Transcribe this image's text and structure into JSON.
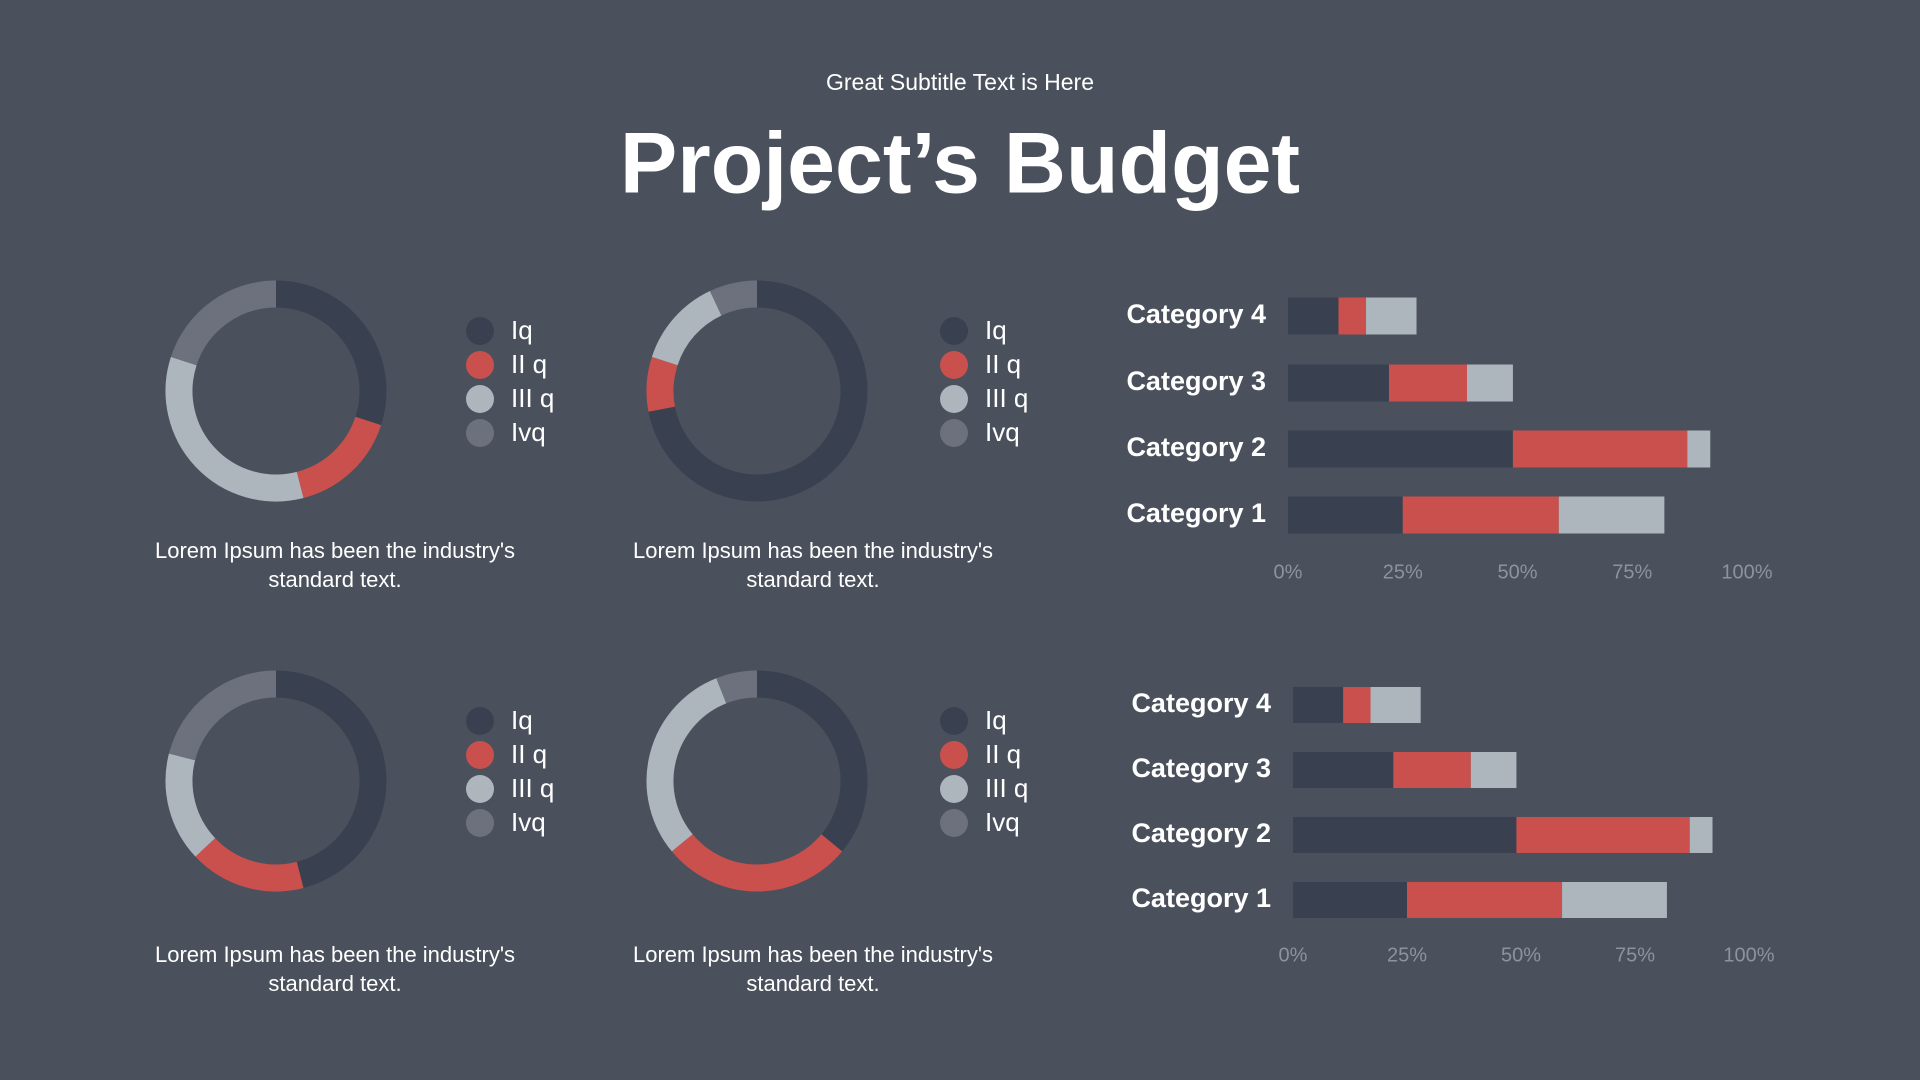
{
  "subtitle": "Great Subtitle Text is Here",
  "title": "Project’s Budget",
  "chart_data": [
    {
      "type": "donut",
      "categories": [
        "Iq",
        "II q",
        "III q",
        "Ivq"
      ],
      "values": [
        30,
        16,
        34,
        20
      ],
      "colors": [
        "#394150",
        "#c9504d",
        "#adb5bd",
        "#6c717d"
      ],
      "caption": "Lorem Ipsum has been the industry's standard text."
    },
    {
      "type": "donut",
      "categories": [
        "Iq",
        "II q",
        "III q",
        "Ivq"
      ],
      "values": [
        72,
        8,
        13,
        7
      ],
      "colors": [
        "#394150",
        "#c9504d",
        "#adb5bd",
        "#6c717d"
      ],
      "caption": "Lorem Ipsum has been the industry's standard text."
    },
    {
      "type": "stacked-bar",
      "categories": [
        "Category 1",
        "Category 2",
        "Category 3",
        "Category 4"
      ],
      "series": [
        {
          "color": "#394150",
          "values": [
            25,
            49,
            22,
            11
          ]
        },
        {
          "color": "#c9504d",
          "values": [
            34,
            38,
            17,
            6
          ]
        },
        {
          "color": "#adb5bd",
          "values": [
            23,
            5,
            10,
            11
          ]
        }
      ],
      "xlim": [
        0,
        100
      ],
      "xticks": [
        {
          "value": 0,
          "label": "0%"
        },
        {
          "value": 25,
          "label": "25%"
        },
        {
          "value": 50,
          "label": "50%"
        },
        {
          "value": 75,
          "label": "75%"
        },
        {
          "value": 100,
          "label": "100%"
        }
      ]
    },
    {
      "type": "donut",
      "categories": [
        "Iq",
        "II q",
        "III q",
        "Ivq"
      ],
      "values": [
        46,
        17,
        16,
        21
      ],
      "colors": [
        "#394150",
        "#c9504d",
        "#adb5bd",
        "#6c717d"
      ],
      "caption": "Lorem Ipsum has been the industry's standard text."
    },
    {
      "type": "donut",
      "categories": [
        "Iq",
        "II q",
        "III q",
        "Ivq"
      ],
      "values": [
        36,
        28,
        30,
        6
      ],
      "colors": [
        "#394150",
        "#c9504d",
        "#adb5bd",
        "#6c717d"
      ],
      "caption": "Lorem Ipsum has been the industry's standard text."
    },
    {
      "type": "stacked-bar",
      "categories": [
        "Category 1",
        "Category 2",
        "Category 3",
        "Category 4"
      ],
      "series": [
        {
          "color": "#394150",
          "values": [
            25,
            49,
            22,
            11
          ]
        },
        {
          "color": "#c9504d",
          "values": [
            34,
            38,
            17,
            6
          ]
        },
        {
          "color": "#adb5bd",
          "values": [
            23,
            5,
            10,
            11
          ]
        }
      ],
      "xlim": [
        0,
        100
      ],
      "xticks": [
        {
          "value": 0,
          "label": "0%"
        },
        {
          "value": 25,
          "label": "25%"
        },
        {
          "value": 50,
          "label": "50%"
        },
        {
          "value": 75,
          "label": "75%"
        },
        {
          "value": 100,
          "label": "100%"
        }
      ]
    }
  ]
}
